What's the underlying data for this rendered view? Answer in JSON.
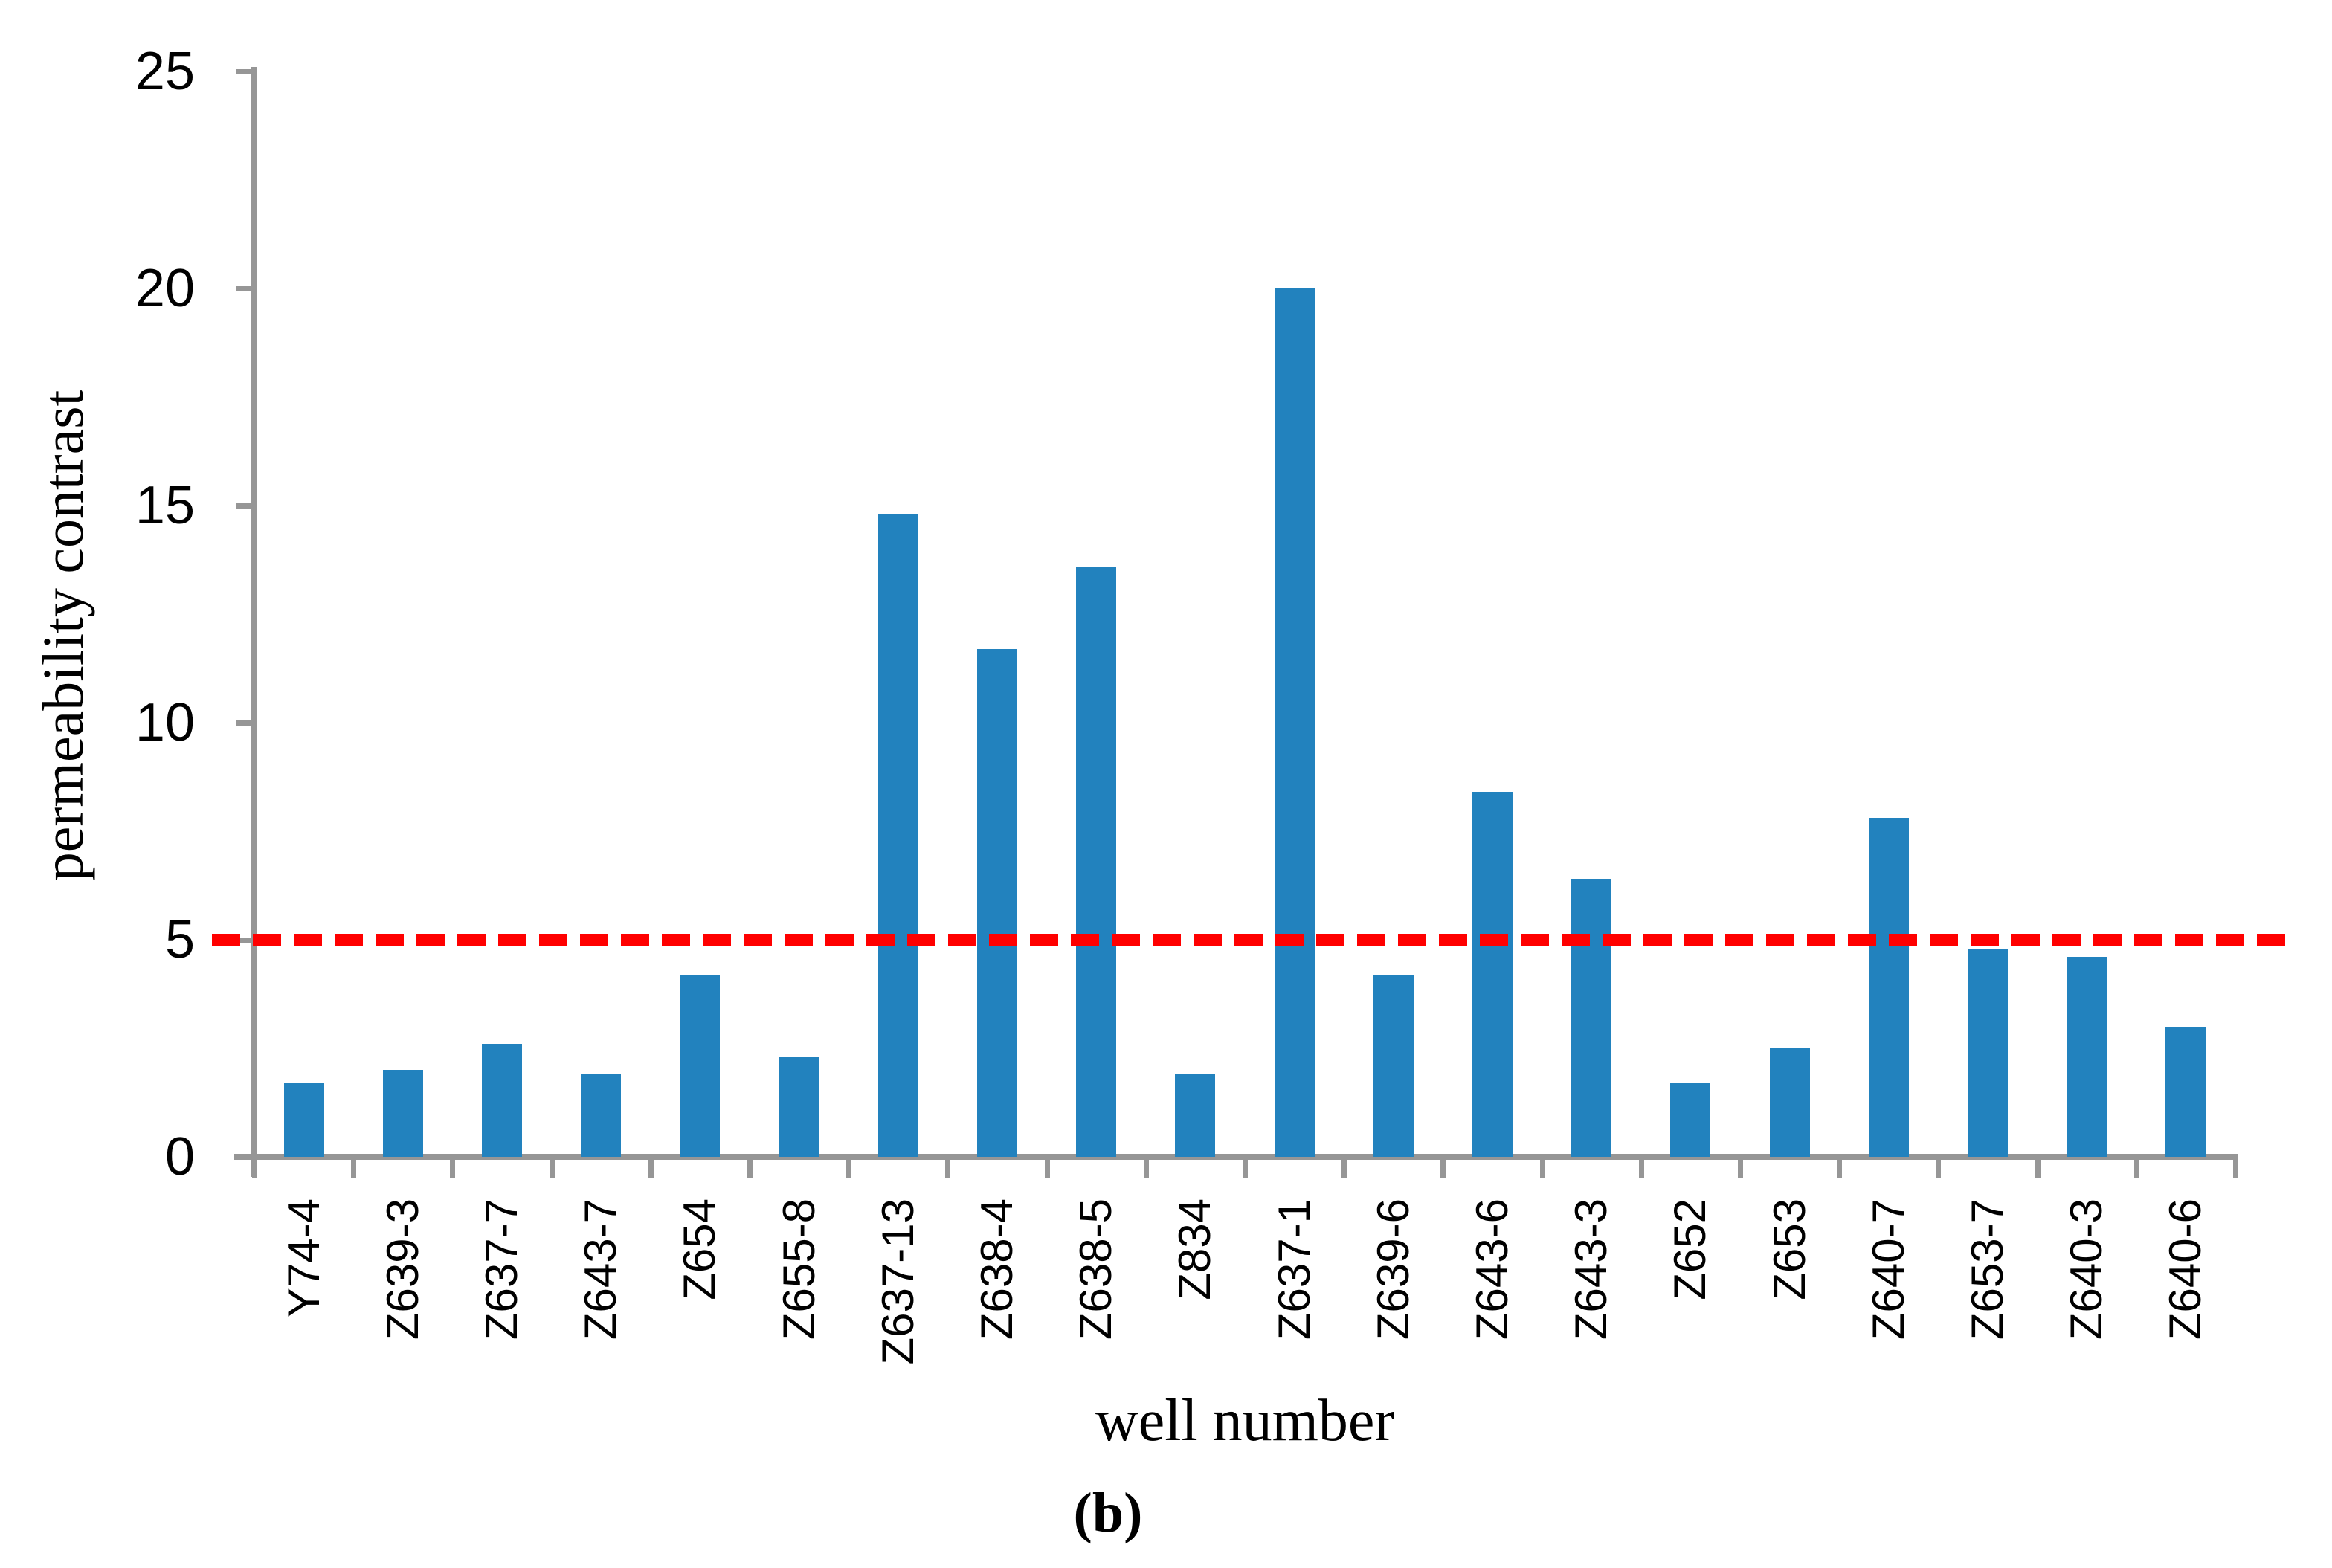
{
  "chart_data": {
    "type": "bar",
    "title": "",
    "xlabel": "well number",
    "ylabel": "permeability contrast",
    "caption": "(b)",
    "categories": [
      "Y74-4",
      "Z639-3",
      "Z637-7",
      "Z643-7",
      "Z654",
      "Z655-8",
      "Z637-13",
      "Z638-4",
      "Z638-5",
      "Z834",
      "Z637-1",
      "Z639-6",
      "Z643-6",
      "Z643-3",
      "Z652",
      "Z653",
      "Z640-7",
      "Z653-7",
      "Z640-3",
      "Z640-6"
    ],
    "values": [
      1.7,
      2.0,
      2.6,
      1.9,
      4.2,
      2.3,
      14.8,
      11.7,
      13.6,
      1.9,
      20.0,
      4.2,
      8.4,
      6.4,
      1.7,
      2.5,
      7.8,
      4.8,
      4.6,
      3.0
    ],
    "ylim": [
      0,
      25
    ],
    "yticks": [
      0,
      5,
      10,
      15,
      20,
      25
    ],
    "threshold_line": {
      "value": 5,
      "color": "#FF0000",
      "style": "dashed"
    },
    "bar_color": "#2282BE",
    "axis_color": "#969696",
    "grid": false,
    "legend_position": "none"
  }
}
